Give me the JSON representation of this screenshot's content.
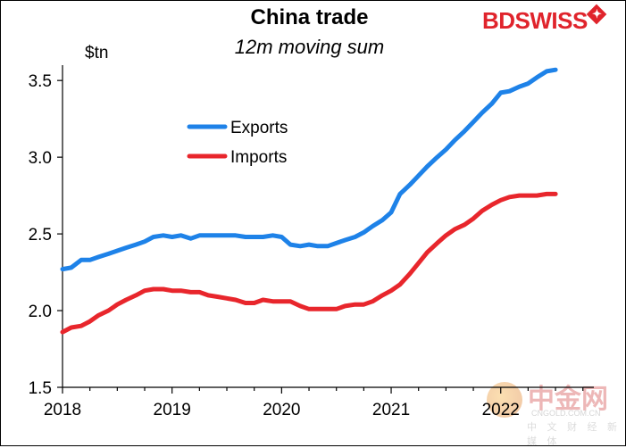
{
  "chart_data": {
    "type": "line",
    "title": "China trade",
    "subtitle": "12m moving sum",
    "ylabel": "$tn",
    "xlabel": "",
    "ylim": [
      1.5,
      3.6
    ],
    "yticks": [
      1.5,
      2.0,
      2.5,
      3.0,
      3.5
    ],
    "ytick_labels": [
      "1.5",
      "2.0",
      "2.5",
      "3.0",
      "3.5"
    ],
    "xlim": [
      2018,
      2022.85
    ],
    "xticks": [
      2018,
      2019,
      2020,
      2021,
      2022
    ],
    "xtick_labels": [
      "2018",
      "2019",
      "2020",
      "2021",
      "2022"
    ],
    "grid": false,
    "legend": "upper-left inside plot",
    "series": [
      {
        "name": "Exports",
        "color": "#1e82e8",
        "x": [
          2018.0,
          2018.08,
          2018.17,
          2018.25,
          2018.33,
          2018.42,
          2018.5,
          2018.58,
          2018.67,
          2018.75,
          2018.83,
          2018.92,
          2019.0,
          2019.08,
          2019.17,
          2019.25,
          2019.33,
          2019.42,
          2019.5,
          2019.58,
          2019.67,
          2019.75,
          2019.83,
          2019.92,
          2020.0,
          2020.08,
          2020.17,
          2020.25,
          2020.33,
          2020.42,
          2020.5,
          2020.58,
          2020.67,
          2020.75,
          2020.83,
          2020.92,
          2021.0,
          2021.08,
          2021.17,
          2021.25,
          2021.33,
          2021.42,
          2021.5,
          2021.58,
          2021.67,
          2021.75,
          2021.83,
          2021.92,
          2022.0,
          2022.08,
          2022.17,
          2022.25,
          2022.33,
          2022.42,
          2022.5
        ],
        "values": [
          2.27,
          2.28,
          2.33,
          2.33,
          2.35,
          2.37,
          2.39,
          2.41,
          2.43,
          2.45,
          2.48,
          2.49,
          2.48,
          2.49,
          2.47,
          2.49,
          2.49,
          2.49,
          2.49,
          2.49,
          2.48,
          2.48,
          2.48,
          2.49,
          2.48,
          2.43,
          2.42,
          2.43,
          2.42,
          2.42,
          2.44,
          2.46,
          2.48,
          2.51,
          2.55,
          2.59,
          2.64,
          2.76,
          2.82,
          2.88,
          2.94,
          3.0,
          3.05,
          3.11,
          3.17,
          3.23,
          3.29,
          3.35,
          3.42,
          3.43,
          3.46,
          3.48,
          3.52,
          3.56,
          3.57
        ]
      },
      {
        "name": "Imports",
        "color": "#e8262c",
        "x": [
          2018.0,
          2018.08,
          2018.17,
          2018.25,
          2018.33,
          2018.42,
          2018.5,
          2018.58,
          2018.67,
          2018.75,
          2018.83,
          2018.92,
          2019.0,
          2019.08,
          2019.17,
          2019.25,
          2019.33,
          2019.42,
          2019.5,
          2019.58,
          2019.67,
          2019.75,
          2019.83,
          2019.92,
          2020.0,
          2020.08,
          2020.17,
          2020.25,
          2020.33,
          2020.42,
          2020.5,
          2020.58,
          2020.67,
          2020.75,
          2020.83,
          2020.92,
          2021.0,
          2021.08,
          2021.17,
          2021.25,
          2021.33,
          2021.42,
          2021.5,
          2021.58,
          2021.67,
          2021.75,
          2021.83,
          2021.92,
          2022.0,
          2022.08,
          2022.17,
          2022.25,
          2022.33,
          2022.42,
          2022.5
        ],
        "values": [
          1.86,
          1.89,
          1.9,
          1.93,
          1.97,
          2.0,
          2.04,
          2.07,
          2.1,
          2.13,
          2.14,
          2.14,
          2.13,
          2.13,
          2.12,
          2.12,
          2.1,
          2.09,
          2.08,
          2.07,
          2.05,
          2.05,
          2.07,
          2.06,
          2.06,
          2.06,
          2.03,
          2.01,
          2.01,
          2.01,
          2.01,
          2.03,
          2.04,
          2.04,
          2.06,
          2.1,
          2.13,
          2.17,
          2.24,
          2.31,
          2.38,
          2.44,
          2.49,
          2.53,
          2.56,
          2.6,
          2.65,
          2.69,
          2.72,
          2.74,
          2.75,
          2.75,
          2.75,
          2.76,
          2.76
        ]
      }
    ]
  },
  "brand": {
    "text": "BDSWISS",
    "mark": "✦",
    "color": "#e0242c"
  },
  "watermark": {
    "text": "中金网",
    "url": "CNGOLD.COM.CN",
    "subtitle": "中 文 财 经 新 媒 体"
  }
}
